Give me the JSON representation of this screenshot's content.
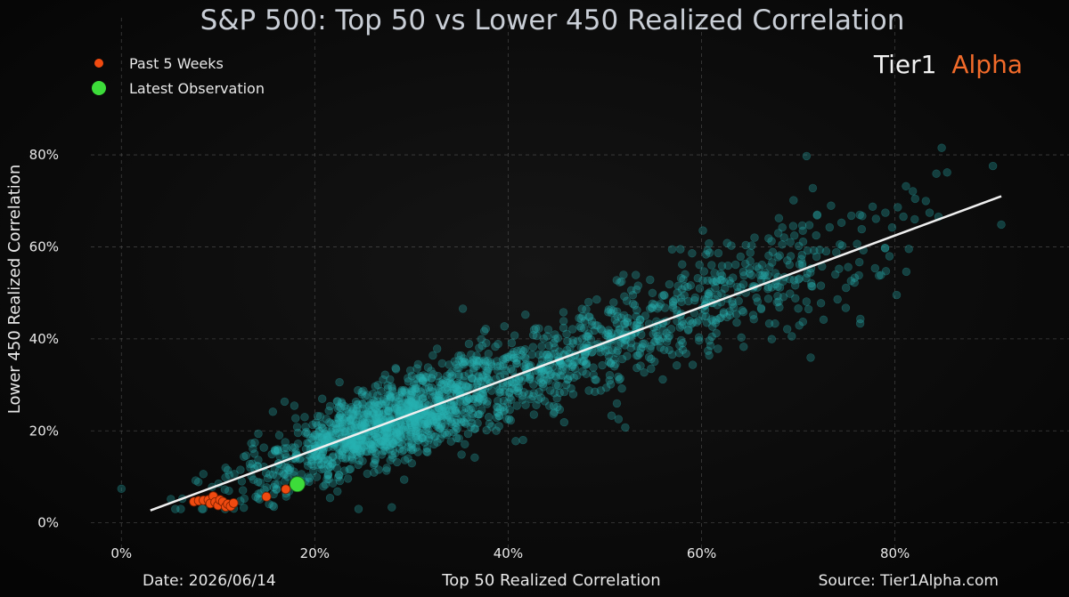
{
  "header": {
    "title": "S&P 500: Top 50 vs Lower 450 Realized Correlation"
  },
  "brand": {
    "part1": "Tier1",
    "part2": "Alpha",
    "part1_color": "#f2f2f2",
    "part2_color": "#f26b2a"
  },
  "legend": [
    {
      "label": "Past 5 Weeks",
      "color": "#f04a10"
    },
    {
      "label": "Latest Observation",
      "color": "#3ddc3a"
    }
  ],
  "footer": {
    "date": "Date: 2026/06/14",
    "source": "Source: Tier1Alpha.com"
  },
  "colors": {
    "background": "#080808",
    "scatter": "#29b3b3",
    "trend": "#f0f0f0",
    "grid": "#555555"
  },
  "chart_data": {
    "type": "scatter",
    "title": "S&P 500: Top 50 vs Lower 450 Realized Correlation",
    "xlabel": "Top 50 Realized Correlation",
    "ylabel": "Lower 450 Realized Correlation",
    "xlim": [
      -5,
      98
    ],
    "ylim": [
      -2,
      92
    ],
    "x_ticks": [
      0,
      20,
      40,
      60,
      80
    ],
    "y_ticks": [
      0,
      20,
      40,
      60,
      80
    ],
    "tick_format": "percent",
    "grid": true,
    "legend_position": "top-left",
    "trend_line": {
      "x": [
        3,
        91
      ],
      "y": [
        2.7,
        71
      ]
    },
    "cloud": {
      "description": "approximately 2000 daily observations, translucent teal",
      "approx_count": 2000,
      "x_range": [
        0,
        91
      ],
      "y_range": [
        3,
        82
      ]
    },
    "series": [
      {
        "name": "Past 5 Weeks",
        "points": [
          [
            7.5,
            4.6
          ],
          [
            8.0,
            4.8
          ],
          [
            8.5,
            4.9
          ],
          [
            9.0,
            5.0
          ],
          [
            9.2,
            4.2
          ],
          [
            9.5,
            5.8
          ],
          [
            9.7,
            4.5
          ],
          [
            10.0,
            3.8
          ],
          [
            10.2,
            5.0
          ],
          [
            10.5,
            4.6
          ],
          [
            10.8,
            3.5
          ],
          [
            11.0,
            4.1
          ],
          [
            11.3,
            3.6
          ],
          [
            11.6,
            4.3
          ],
          [
            15.0,
            5.7
          ],
          [
            17.0,
            7.3
          ]
        ]
      },
      {
        "name": "Latest Observation",
        "points": [
          [
            18.2,
            8.4
          ]
        ]
      }
    ]
  }
}
